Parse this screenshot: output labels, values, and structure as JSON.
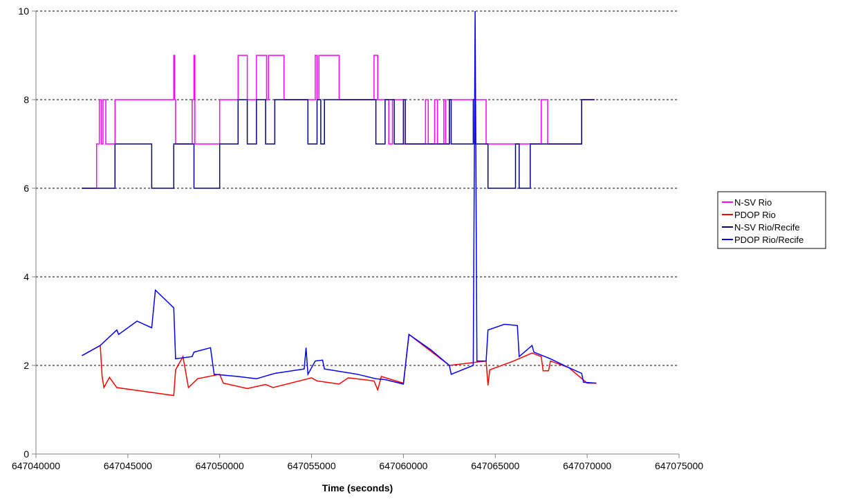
{
  "chart_data": {
    "type": "line",
    "title": "",
    "xlabel": "Time (seconds)",
    "ylabel": "",
    "xlim": [
      647040000,
      647075000
    ],
    "ylim": [
      0,
      10
    ],
    "xticks": [
      647040000,
      647045000,
      647050000,
      647055000,
      647060000,
      647065000,
      647070000,
      647075000
    ],
    "xtick_labels": [
      "647040000",
      "647045000",
      "647050000",
      "647055000",
      "647060000",
      "647065000",
      "647070000",
      "647075000"
    ],
    "yticks": [
      0,
      2,
      4,
      6,
      8,
      10
    ],
    "ytick_labels": [
      "0",
      "2",
      "4",
      "6",
      "8",
      "10"
    ],
    "grid": "horizontal dashed",
    "legend_position": "right",
    "series": [
      {
        "name": "N-SV Rio",
        "color": "#ff00ff",
        "step": true,
        "points": [
          [
            647042500,
            6
          ],
          [
            647043300,
            7
          ],
          [
            647043450,
            8
          ],
          [
            647043550,
            7
          ],
          [
            647043650,
            8
          ],
          [
            647043800,
            7
          ],
          [
            647044300,
            8
          ],
          [
            647047500,
            9
          ],
          [
            647047550,
            8
          ],
          [
            647047600,
            7
          ],
          [
            647048500,
            8
          ],
          [
            647048600,
            9
          ],
          [
            647048650,
            7
          ],
          [
            647050000,
            8
          ],
          [
            647051000,
            9
          ],
          [
            647051500,
            8
          ],
          [
            647052000,
            9
          ],
          [
            647052550,
            8
          ],
          [
            647052650,
            9
          ],
          [
            647053500,
            8
          ],
          [
            647055200,
            9
          ],
          [
            647055300,
            8
          ],
          [
            647055400,
            9
          ],
          [
            647056500,
            8
          ],
          [
            647058400,
            9
          ],
          [
            647058600,
            8
          ],
          [
            647059200,
            7
          ],
          [
            647059400,
            8
          ],
          [
            647060000,
            7
          ],
          [
            647061200,
            8
          ],
          [
            647061350,
            7
          ],
          [
            647061700,
            8
          ],
          [
            647061850,
            7
          ],
          [
            647062200,
            8
          ],
          [
            647062300,
            7
          ],
          [
            647062500,
            8
          ],
          [
            647064500,
            7
          ],
          [
            647067500,
            8
          ],
          [
            647067850,
            7
          ],
          [
            647069700,
            8
          ],
          [
            647070400,
            8
          ]
        ]
      },
      {
        "name": "PDOP Rio",
        "color": "#ff0000",
        "step": false,
        "points": [
          [
            647042500,
            2.22
          ],
          [
            647043500,
            2.45
          ],
          [
            647043600,
            1.75
          ],
          [
            647043700,
            1.5
          ],
          [
            647044000,
            1.73
          ],
          [
            647044400,
            1.5
          ],
          [
            647047500,
            1.32
          ],
          [
            647047600,
            1.9
          ],
          [
            647048000,
            2.2
          ],
          [
            647048300,
            1.5
          ],
          [
            647048800,
            1.7
          ],
          [
            647050000,
            1.8
          ],
          [
            647050200,
            1.6
          ],
          [
            647051500,
            1.48
          ],
          [
            647052500,
            1.57
          ],
          [
            647052900,
            1.5
          ],
          [
            647055000,
            1.72
          ],
          [
            647055300,
            1.65
          ],
          [
            647056500,
            1.58
          ],
          [
            647057000,
            1.72
          ],
          [
            647058400,
            1.65
          ],
          [
            647058600,
            1.45
          ],
          [
            647058800,
            1.75
          ],
          [
            647060000,
            1.6
          ],
          [
            647060300,
            2.7
          ],
          [
            647062500,
            2.0
          ],
          [
            647064500,
            2.1
          ],
          [
            647064600,
            1.55
          ],
          [
            647064700,
            1.9
          ],
          [
            647066000,
            2.1
          ],
          [
            647067000,
            2.28
          ],
          [
            647067500,
            2.2
          ],
          [
            647067600,
            1.88
          ],
          [
            647067900,
            1.88
          ],
          [
            647068000,
            2.1
          ],
          [
            647069000,
            1.95
          ],
          [
            647070000,
            1.6
          ],
          [
            647070500,
            1.6
          ]
        ]
      },
      {
        "name": "N-SV Rio/Recife",
        "color": "#000080",
        "step": true,
        "points": [
          [
            647042500,
            6
          ],
          [
            647044300,
            7
          ],
          [
            647046300,
            6
          ],
          [
            647047500,
            7
          ],
          [
            647048600,
            6
          ],
          [
            647050000,
            7
          ],
          [
            647051000,
            8
          ],
          [
            647051500,
            7
          ],
          [
            647052000,
            8
          ],
          [
            647052500,
            7
          ],
          [
            647053000,
            8
          ],
          [
            647054800,
            7
          ],
          [
            647055300,
            8
          ],
          [
            647055500,
            7
          ],
          [
            647055700,
            8
          ],
          [
            647058500,
            7
          ],
          [
            647059000,
            8
          ],
          [
            647059500,
            7
          ],
          [
            647060000,
            8
          ],
          [
            647060100,
            7
          ],
          [
            647062500,
            8
          ],
          [
            647062600,
            7
          ],
          [
            647063800,
            8
          ],
          [
            647063900,
            7
          ],
          [
            647064600,
            6
          ],
          [
            647066100,
            7
          ],
          [
            647066300,
            6
          ],
          [
            647066900,
            7
          ],
          [
            647069700,
            8
          ],
          [
            647070400,
            8
          ]
        ]
      },
      {
        "name": "PDOP Rio/Recife",
        "color": "#0000ff",
        "step": false,
        "points": [
          [
            647042500,
            2.22
          ],
          [
            647043500,
            2.45
          ],
          [
            647044400,
            2.8
          ],
          [
            647044500,
            2.7
          ],
          [
            647045500,
            3.0
          ],
          [
            647046300,
            2.85
          ],
          [
            647046500,
            3.7
          ],
          [
            647047000,
            3.5
          ],
          [
            647047500,
            3.3
          ],
          [
            647047600,
            2.15
          ],
          [
            647048500,
            2.2
          ],
          [
            647048600,
            2.3
          ],
          [
            647049500,
            2.4
          ],
          [
            647049700,
            1.8
          ],
          [
            647051000,
            1.75
          ],
          [
            647052000,
            1.7
          ],
          [
            647053000,
            1.82
          ],
          [
            647054600,
            1.92
          ],
          [
            647054700,
            2.4
          ],
          [
            647054800,
            1.8
          ],
          [
            647055200,
            2.1
          ],
          [
            647055600,
            2.12
          ],
          [
            647055700,
            1.92
          ],
          [
            647057500,
            1.8
          ],
          [
            647058500,
            1.7
          ],
          [
            647059000,
            1.68
          ],
          [
            647060000,
            1.58
          ],
          [
            647060300,
            2.7
          ],
          [
            647061500,
            2.35
          ],
          [
            647062500,
            2.0
          ],
          [
            647062600,
            1.8
          ],
          [
            647063800,
            2.0
          ],
          [
            647063900,
            10.0
          ],
          [
            647064000,
            2.1
          ],
          [
            647064500,
            2.1
          ],
          [
            647064600,
            2.8
          ],
          [
            647065500,
            2.93
          ],
          [
            647066200,
            2.9
          ],
          [
            647066300,
            2.2
          ],
          [
            647067000,
            2.45
          ],
          [
            647067100,
            2.3
          ],
          [
            647068000,
            2.15
          ],
          [
            647069000,
            1.95
          ],
          [
            647069700,
            1.82
          ],
          [
            647069800,
            1.62
          ],
          [
            647070500,
            1.6
          ]
        ]
      }
    ]
  }
}
